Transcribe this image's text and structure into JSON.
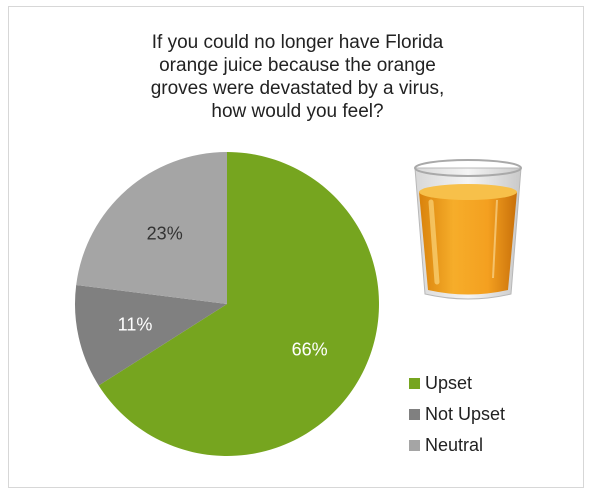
{
  "chart_data": {
    "type": "pie",
    "title": "If you could no longer have Florida\norange juice because the orange\ngroves were devastated by a virus,\nhow would you feel?",
    "categories": [
      "Upset",
      "Not Upset",
      "Neutral"
    ],
    "values": [
      66,
      11,
      23
    ],
    "labels": [
      "66%",
      "11%",
      "23%"
    ],
    "colors": [
      "#76a51f",
      "#808080",
      "#a5a5a5"
    ],
    "label_colors": [
      "#ffffff",
      "#ffffff",
      "#333333"
    ],
    "start_angle_deg": 0,
    "direction": "clockwise",
    "legend": "bottom-right"
  },
  "image": {
    "icon": "orange-juice-glass-icon"
  }
}
